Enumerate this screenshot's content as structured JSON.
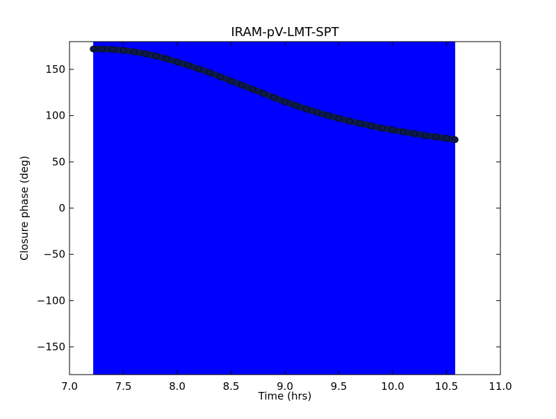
{
  "chart_data": {
    "type": "scatter",
    "title": "IRAM-pV-LMT-SPT",
    "xlabel": "Time (hrs)",
    "ylabel": "Closure phase (deg)",
    "xlim": [
      7.0,
      11.0
    ],
    "ylim": [
      -180,
      180
    ],
    "xticks": [
      7.0,
      7.5,
      8.0,
      8.5,
      9.0,
      9.5,
      10.0,
      10.5,
      11.0
    ],
    "xtick_labels": [
      "7.0",
      "7.5",
      "8.0",
      "8.5",
      "9.0",
      "9.5",
      "10.0",
      "10.5",
      "11.0"
    ],
    "yticks": [
      150,
      100,
      50,
      0,
      -50,
      -100,
      -150
    ],
    "ytick_labels": [
      "150",
      "100",
      "50",
      "0",
      "−50",
      "−100",
      "−150"
    ],
    "grid": false,
    "legend": "none",
    "shaded_band": {
      "x_start": 7.22,
      "x_end": 10.58,
      "color": "#0000ff"
    },
    "series": [
      {
        "color": "#0d1b4a",
        "x": [
          7.22,
          7.3,
          7.4,
          7.5,
          7.6,
          7.7,
          7.8,
          7.9,
          8.0,
          8.1,
          8.2,
          8.3,
          8.4,
          8.5,
          8.6,
          8.7,
          8.8,
          8.9,
          9.0,
          9.1,
          9.2,
          9.3,
          9.4,
          9.5,
          9.6,
          9.7,
          9.8,
          9.9,
          10.0,
          10.1,
          10.2,
          10.3,
          10.4,
          10.5,
          10.58
        ],
        "y": [
          172,
          172,
          171.5,
          170.5,
          169,
          167,
          164.5,
          161.5,
          158,
          154.5,
          150.5,
          146.5,
          142,
          137.5,
          133,
          128.5,
          124,
          119.5,
          115,
          111,
          107,
          103.5,
          100,
          97,
          94,
          91.5,
          89,
          86.5,
          84.5,
          82.5,
          80.5,
          78.5,
          77,
          75.5,
          74
        ]
      }
    ]
  }
}
